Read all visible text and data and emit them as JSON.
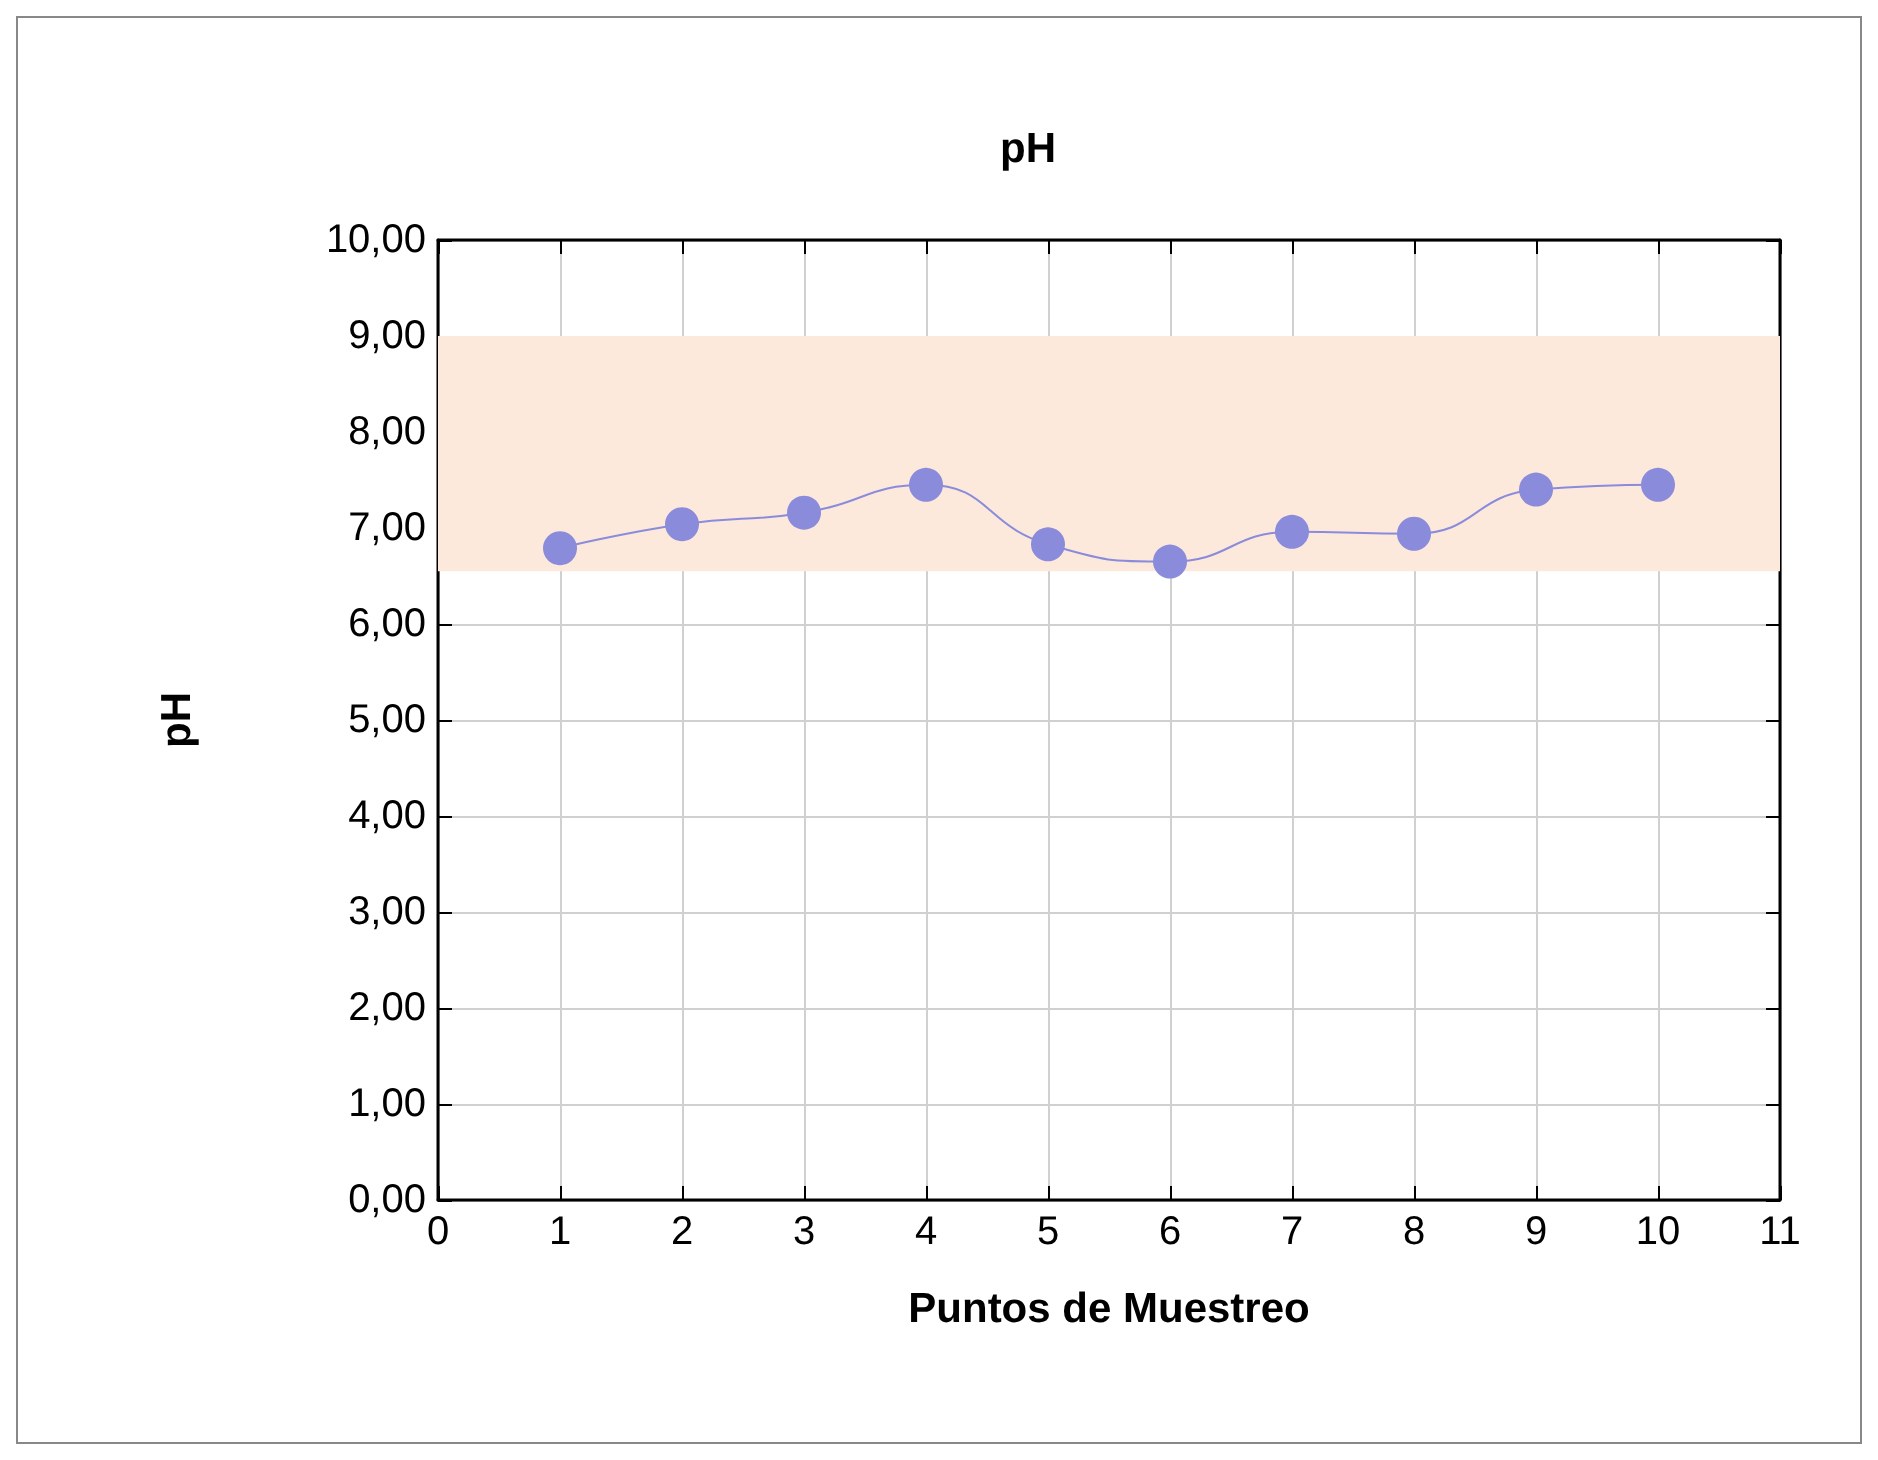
{
  "chart_data": {
    "type": "line",
    "title": "pH",
    "xlabel": "Puntos de Muestreo",
    "ylabel": "pH",
    "x": [
      1,
      2,
      3,
      4,
      5,
      6,
      7,
      8,
      9,
      10
    ],
    "series": [
      {
        "color": "#8b8bdc",
        "values": [
          6.79,
          7.04,
          7.16,
          7.45,
          6.83,
          6.65,
          6.96,
          6.94,
          7.4,
          7.45
        ]
      }
    ],
    "xlim": [
      0,
      11
    ],
    "xticks": [
      0,
      1,
      2,
      3,
      4,
      5,
      6,
      7,
      8,
      9,
      10,
      11
    ],
    "ylim": [
      0,
      10
    ],
    "yticks": [
      {
        "value": 0,
        "label": "0,00"
      },
      {
        "value": 1,
        "label": "1,00"
      },
      {
        "value": 2,
        "label": "2,00"
      },
      {
        "value": 3,
        "label": "3,00"
      },
      {
        "value": 4,
        "label": "4,00"
      },
      {
        "value": 5,
        "label": "5,00"
      },
      {
        "value": 6,
        "label": "6,00"
      },
      {
        "value": 7,
        "label": "7,00"
      },
      {
        "value": 8,
        "label": "8,00"
      },
      {
        "value": 9,
        "label": "9,00"
      },
      {
        "value": 10,
        "label": "10,00"
      }
    ],
    "bands": [
      {
        "axis": "y",
        "from": 6.55,
        "to": 9,
        "color": "#fce9db"
      }
    ],
    "grid": true,
    "marker": "circle",
    "line_style": "solid"
  }
}
